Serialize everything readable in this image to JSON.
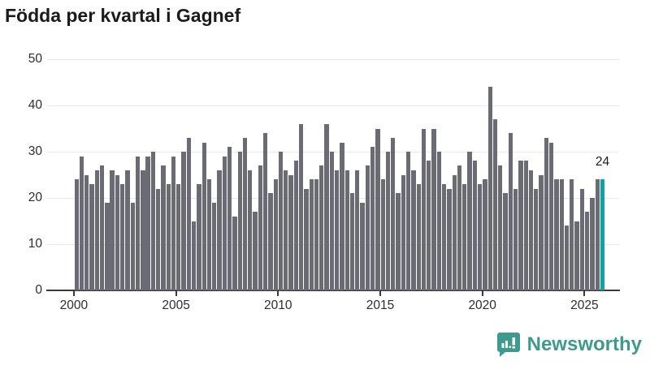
{
  "chart_data": {
    "type": "bar",
    "title": "Födda per kvartal i Gagnef",
    "frequency": "quarterly",
    "start_period": "2000 Q1",
    "end_period": "2025 Q4",
    "values": [
      24,
      29,
      25,
      23,
      26,
      27,
      19,
      26,
      25,
      23,
      26,
      19,
      29,
      26,
      29,
      30,
      22,
      27,
      23,
      29,
      23,
      30,
      33,
      15,
      23,
      32,
      24,
      19,
      26,
      29,
      31,
      16,
      30,
      33,
      26,
      17,
      27,
      34,
      21,
      24,
      30,
      26,
      25,
      28,
      36,
      22,
      24,
      24,
      27,
      36,
      30,
      26,
      32,
      26,
      21,
      26,
      19,
      27,
      31,
      35,
      24,
      30,
      33,
      21,
      25,
      30,
      26,
      23,
      35,
      28,
      35,
      30,
      23,
      22,
      25,
      27,
      23,
      30,
      28,
      23,
      24,
      44,
      37,
      27,
      21,
      34,
      22,
      28,
      28,
      26,
      22,
      25,
      33,
      32,
      24,
      24,
      14,
      24,
      15,
      22,
      17,
      20,
      24,
      24
    ],
    "x_tick_labels": [
      "2000",
      "2005",
      "2010",
      "2015",
      "2020",
      "2025"
    ],
    "y_ticks": [
      0,
      10,
      20,
      30,
      40,
      50
    ],
    "ylim": [
      0,
      50
    ],
    "grid": "horizontal",
    "legend": "none",
    "bar_color": "#6b6b76",
    "highlight_color": "#0aa3a6",
    "highlight_last": true,
    "last_value_label": "24"
  },
  "branding": {
    "name": "Newsworthy",
    "color": "#3d9a8c",
    "icon": "newsworthy-bubble-icon"
  }
}
